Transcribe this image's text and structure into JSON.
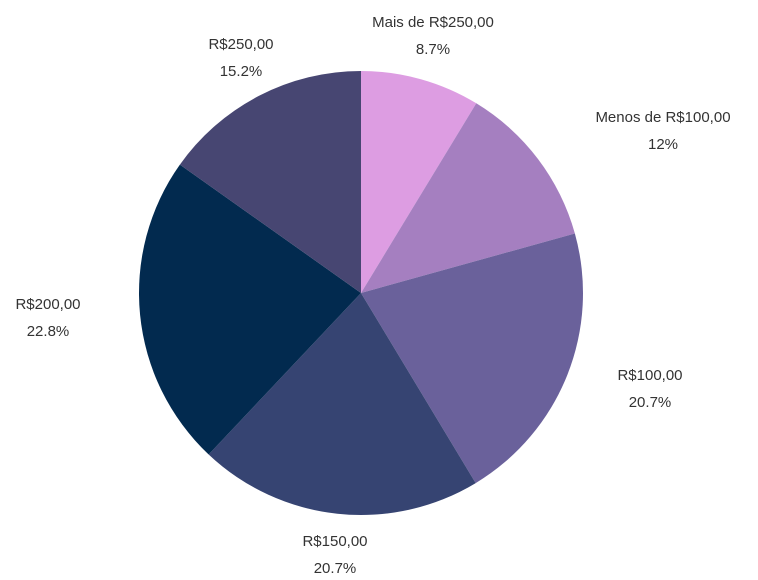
{
  "chart_data": {
    "type": "pie",
    "categories": [
      "Mais de R$250,00",
      "Menos de R$100,00",
      "R$100,00",
      "R$150,00",
      "R$200,00",
      "R$250,00"
    ],
    "values": [
      8.7,
      12,
      20.7,
      20.7,
      22.8,
      15.2
    ],
    "value_labels": [
      "8.7%",
      "12%",
      "20.7%",
      "20.7%",
      "22.8%",
      "15.2%"
    ],
    "colors": [
      "#dd9de2",
      "#a57fc0",
      "#6a619b",
      "#364472",
      "#022a4f",
      "#474672"
    ]
  }
}
